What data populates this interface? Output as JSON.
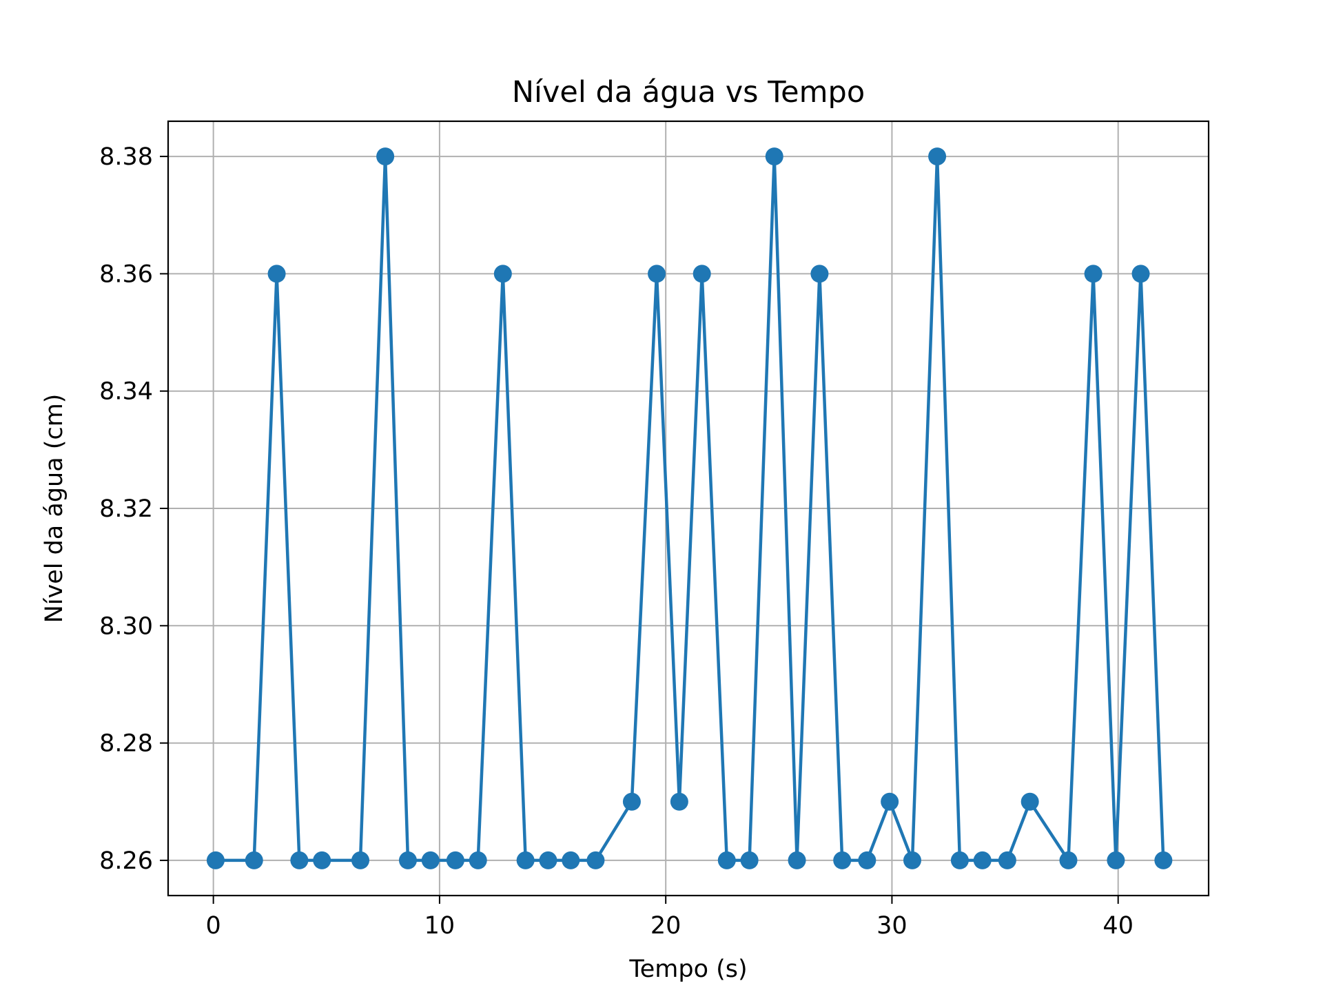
{
  "chart_data": {
    "type": "line",
    "title": "Nível da água vs Tempo",
    "xlabel": "Tempo (s)",
    "ylabel": "Nível da água (cm)",
    "xlim": [
      -2.0,
      44.0
    ],
    "ylim": [
      8.254,
      8.386
    ],
    "xticks": [
      0,
      10,
      20,
      30,
      40
    ],
    "yticks": [
      8.26,
      8.28,
      8.3,
      8.32,
      8.34,
      8.36,
      8.38
    ],
    "grid": true,
    "marker": "circle",
    "color": "#1f77b4",
    "series": [
      {
        "x": [
          0.1,
          1.8,
          2.8,
          3.8,
          4.8,
          6.5,
          7.6,
          8.6,
          9.6,
          10.7,
          11.7,
          12.8,
          13.8,
          14.8,
          15.8,
          16.9,
          18.5,
          19.6,
          20.6,
          21.6,
          22.7,
          23.7,
          24.8,
          25.8,
          26.8,
          27.8,
          28.9,
          29.9,
          30.9,
          32.0,
          33.0,
          34.0,
          35.1,
          36.1,
          37.8,
          38.9,
          39.9,
          41.0,
          42.0
        ],
        "y": [
          8.26,
          8.26,
          8.36,
          8.26,
          8.26,
          8.26,
          8.38,
          8.26,
          8.26,
          8.26,
          8.26,
          8.36,
          8.26,
          8.26,
          8.26,
          8.26,
          8.27,
          8.36,
          8.27,
          8.36,
          8.26,
          8.26,
          8.38,
          8.26,
          8.36,
          8.26,
          8.26,
          8.27,
          8.26,
          8.38,
          8.26,
          8.26,
          8.26,
          8.27,
          8.26,
          8.36,
          8.26,
          8.36,
          8.26
        ]
      }
    ]
  }
}
